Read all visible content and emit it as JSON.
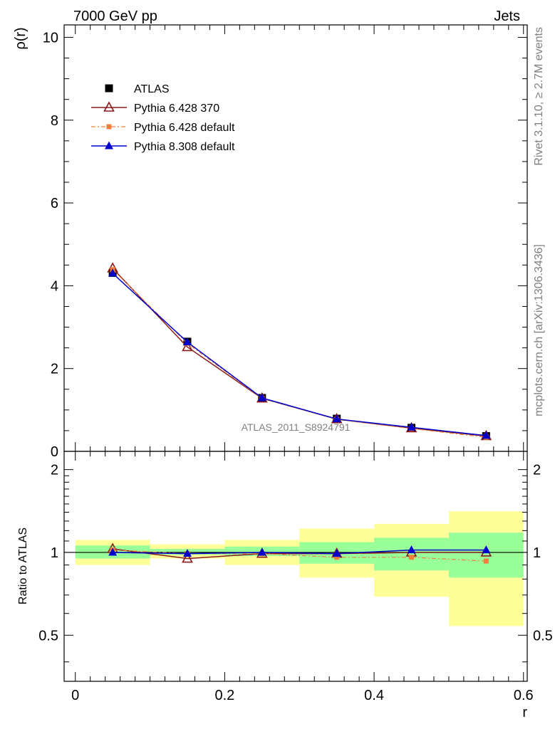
{
  "header": {
    "left_label": "7000 GeV pp",
    "right_label": "Jets"
  },
  "side": {
    "rivet": "Rivet 3.1.10, ≥ 2.7M events",
    "mcplots": "mcplots.cern.ch [arXiv:1306.3436]"
  },
  "analysis_label": "ATLAS_2011_S8924791",
  "chart_data": [
    {
      "type": "line",
      "panel": "main",
      "ylabel": "ρ(r)",
      "xlabel": "",
      "xlim": [
        -0.015,
        0.605
      ],
      "ylim": [
        0,
        10.3
      ],
      "y_ticks": [
        0,
        2,
        4,
        6,
        8,
        10
      ],
      "y_tick_labels": [
        "0",
        "2",
        "4",
        "6",
        "8",
        "10"
      ],
      "legend_position": "top-left",
      "x": [
        0.05,
        0.15,
        0.25,
        0.35,
        0.45,
        0.55
      ],
      "series": [
        {
          "name": "ATLAS",
          "marker": "square",
          "color": "#000000",
          "values": [
            4.31,
            2.65,
            1.29,
            0.79,
            0.57,
            0.37
          ]
        },
        {
          "name": "Pythia 6.428 370",
          "marker": "open-triangle",
          "color": "#8b1a1a",
          "values": [
            4.42,
            2.52,
            1.28,
            0.78,
            0.56,
            0.37
          ]
        },
        {
          "name": "Pythia 6.428 default",
          "marker": "small-square",
          "color": "#f07f3f",
          "values": [
            4.39,
            2.61,
            1.28,
            0.77,
            0.55,
            0.34
          ]
        },
        {
          "name": "Pythia 8.308 default",
          "marker": "filled-triangle",
          "color": "#0000cc",
          "values": [
            4.3,
            2.64,
            1.29,
            0.78,
            0.58,
            0.38
          ]
        }
      ]
    },
    {
      "type": "line",
      "panel": "ratio",
      "ylabel": "Ratio to ATLAS",
      "xlabel": "r",
      "xlim": [
        -0.015,
        0.605
      ],
      "ylim": [
        0.34,
        2.33
      ],
      "y_ticks": [
        0.5,
        1,
        2
      ],
      "y_tick_labels": [
        "0.5",
        "1",
        "2"
      ],
      "x_ticks": [
        0,
        0.2,
        0.4,
        0.6
      ],
      "x_tick_labels": [
        "0",
        "0.2",
        "0.4",
        "0.6"
      ],
      "bins": [
        [
          0,
          0.1
        ],
        [
          0.1,
          0.2
        ],
        [
          0.2,
          0.3
        ],
        [
          0.3,
          0.4
        ],
        [
          0.4,
          0.5
        ],
        [
          0.5,
          0.6
        ]
      ],
      "band_colors": {
        "stat": "#99ff99",
        "total": "#ffff99"
      },
      "stat_band": [
        [
          0.95,
          1.06
        ],
        [
          0.98,
          1.03
        ],
        [
          0.97,
          1.05
        ],
        [
          0.91,
          1.09
        ],
        [
          0.86,
          1.13
        ],
        [
          0.81,
          1.18
        ]
      ],
      "total_band": [
        [
          0.9,
          1.11
        ],
        [
          0.95,
          1.07
        ],
        [
          0.9,
          1.11
        ],
        [
          0.81,
          1.22
        ],
        [
          0.69,
          1.27
        ],
        [
          0.54,
          1.41
        ]
      ],
      "x": [
        0.05,
        0.15,
        0.25,
        0.35,
        0.45,
        0.55
      ],
      "series": [
        {
          "name": "Pythia 6.428 370",
          "values": [
            1.03,
            0.95,
            0.99,
            0.99,
            1.0,
            1.0
          ]
        },
        {
          "name": "Pythia 6.428 default",
          "values": [
            1.02,
            0.99,
            0.99,
            0.96,
            0.96,
            0.93
          ]
        },
        {
          "name": "Pythia 8.308 default",
          "values": [
            1.0,
            0.99,
            1.0,
            0.99,
            1.02,
            1.02
          ]
        }
      ]
    }
  ]
}
